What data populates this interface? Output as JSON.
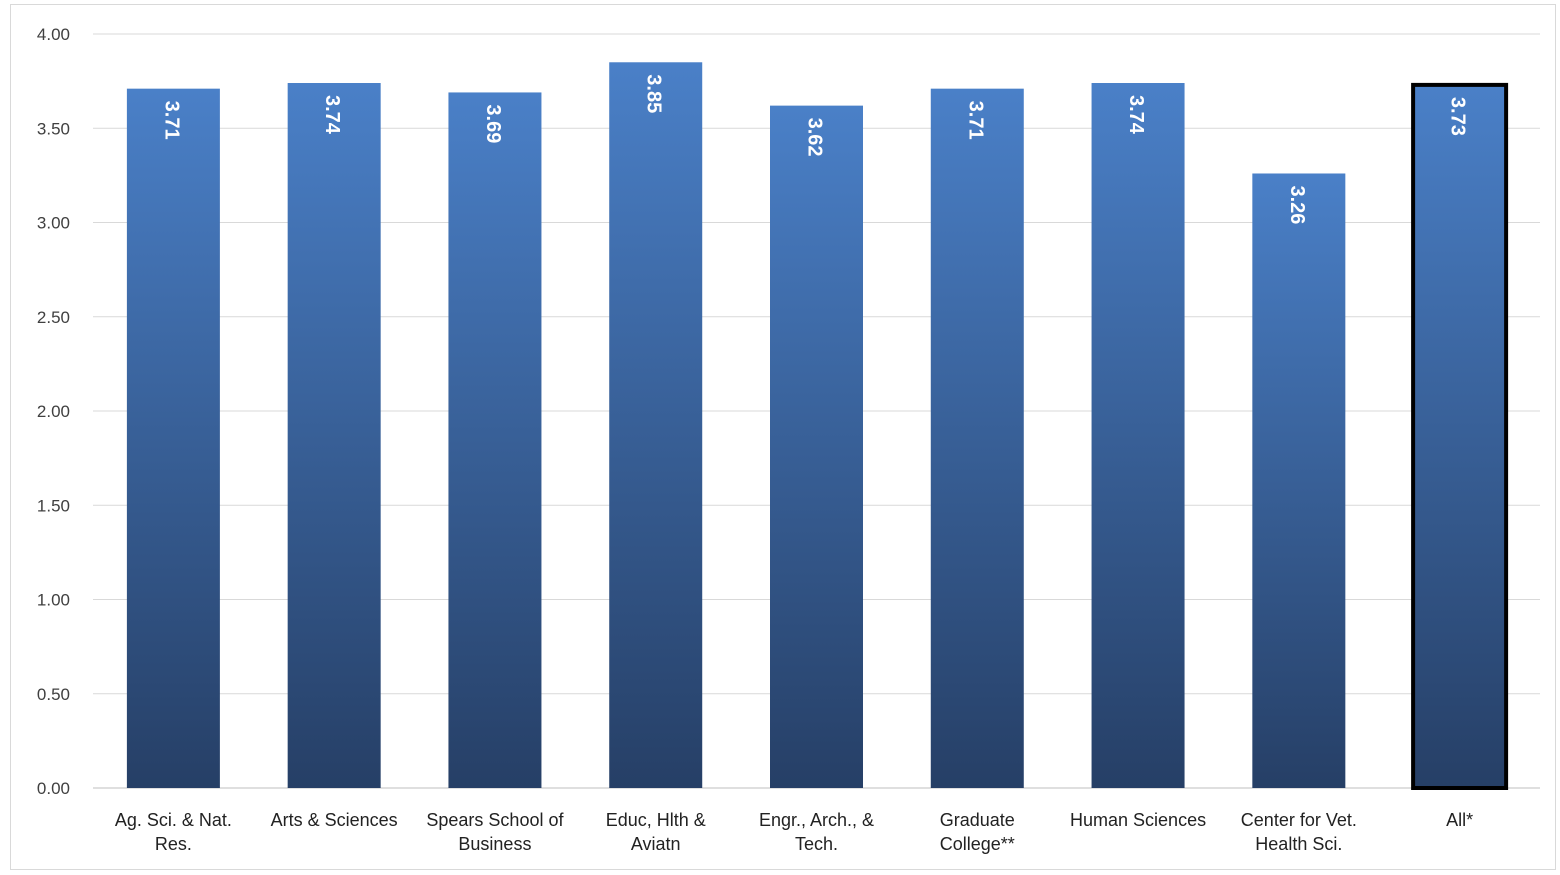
{
  "chart_data": {
    "type": "bar",
    "title": "",
    "xlabel": "",
    "ylabel": "",
    "ylim": [
      0,
      4
    ],
    "yticks": [
      "0.00",
      "0.50",
      "1.00",
      "1.50",
      "2.00",
      "2.50",
      "3.00",
      "3.50",
      "4.00"
    ],
    "grid": true,
    "legend": "none",
    "categories": [
      [
        "Ag. Sci. & Nat.",
        "Res."
      ],
      [
        "Arts & Sciences"
      ],
      [
        "Spears School of",
        "Business"
      ],
      [
        "Educ, Hlth &",
        "Aviatn"
      ],
      [
        "Engr., Arch., &",
        "Tech."
      ],
      [
        "Graduate",
        "College**"
      ],
      [
        "Human Sciences"
      ],
      [
        "Center for Vet.",
        "Health Sci."
      ],
      [
        "All*"
      ]
    ],
    "values": [
      3.71,
      3.74,
      3.69,
      3.85,
      3.62,
      3.71,
      3.74,
      3.26,
      3.73
    ],
    "data_labels": [
      "3.71",
      "3.74",
      "3.69",
      "3.85",
      "3.62",
      "3.71",
      "3.74",
      "3.26",
      "3.73"
    ],
    "highlighted_index": 8,
    "colors": {
      "bar_top": "#4a80c8",
      "bar_bottom": "#263f66",
      "highlight_border": "#000000",
      "gridline": "#d9d9d9",
      "axis_line": "#bfbfbf"
    }
  }
}
